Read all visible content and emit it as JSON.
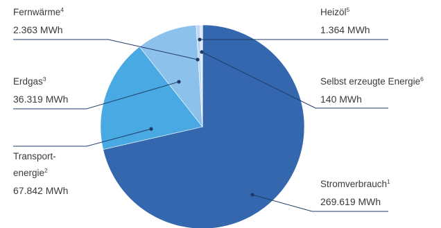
{
  "chart_data": {
    "type": "pie",
    "title": "",
    "unit": "MWh",
    "slices": [
      {
        "name": "Stromverbrauch",
        "footnote": "1",
        "value": 269619,
        "value_label": "269.619 MWh",
        "color": "#3567AF"
      },
      {
        "name": "Transport-",
        "name_line2": "energie",
        "footnote": "2",
        "value": 67842,
        "value_label": "67.842 MWh",
        "color": "#49A9E2"
      },
      {
        "name": "Erdgas",
        "footnote": "3",
        "value": 36319,
        "value_label": "36.319 MWh",
        "color": "#8CC1EC"
      },
      {
        "name": "Fernwärme",
        "footnote": "4",
        "value": 2363,
        "value_label": "2.363 MWh",
        "color": "#BCD6F3"
      },
      {
        "name": "Heizöl",
        "footnote": "5",
        "value": 1364,
        "value_label": "1.364 MWh",
        "color": "#DCE9F8"
      },
      {
        "name": "Selbst erzeugte Energie",
        "footnote": "6",
        "value": 140,
        "value_label": "140 MWh",
        "color": "#2F5E9E"
      }
    ],
    "start_angle_deg": -90,
    "direction": "clockwise",
    "legend": "none",
    "line_color": "#1f3a66"
  }
}
